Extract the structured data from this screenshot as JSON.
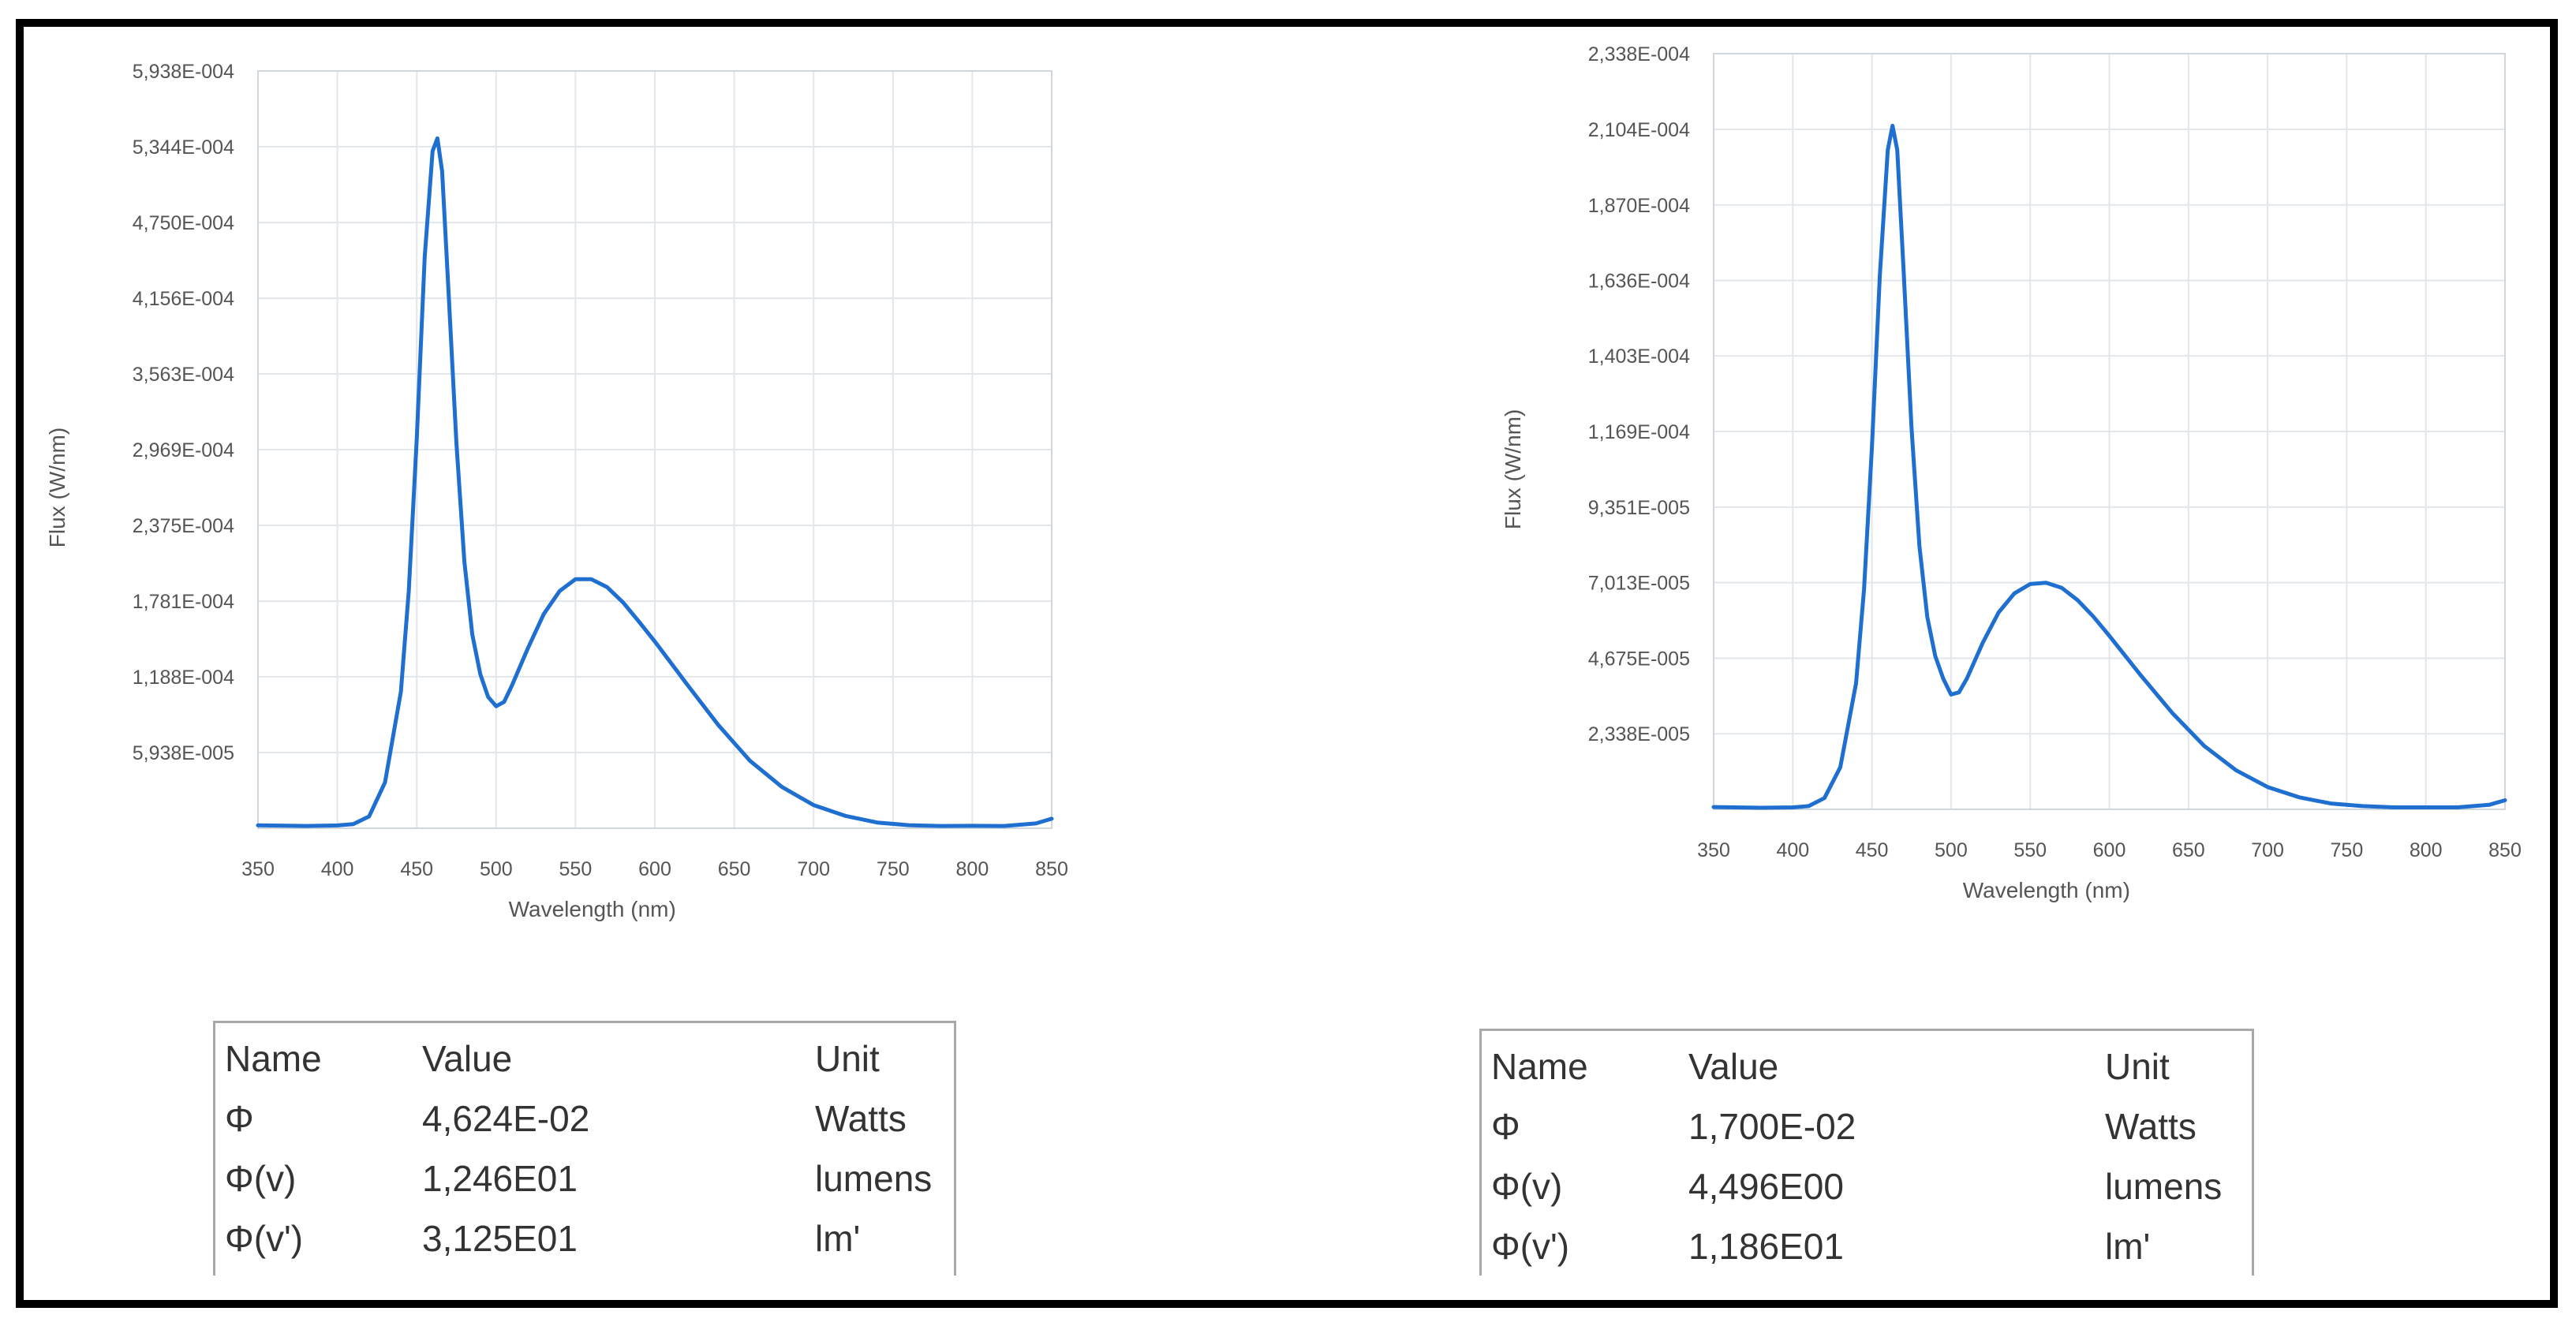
{
  "chart_data": [
    {
      "type": "line",
      "title": "",
      "xlabel": "Wavelength (nm)",
      "ylabel": "Flux (W/nm)",
      "xlim": [
        350,
        850
      ],
      "ylim": [
        0,
        0.0005938
      ],
      "x_ticks": [
        350,
        400,
        450,
        500,
        550,
        600,
        650,
        700,
        750,
        800,
        850
      ],
      "x_tick_labels": [
        "350",
        "400",
        "450",
        "500",
        "550",
        "600",
        "650",
        "700",
        "750",
        "800",
        "850"
      ],
      "y_ticks": [
        5.938e-05,
        0.0001188,
        0.0001781,
        0.0002375,
        0.0002969,
        0.0003563,
        0.0004156,
        0.000475,
        0.0005344,
        0.0005938
      ],
      "y_tick_labels": [
        "5,938E-005",
        "1,188E-004",
        "1,781E-004",
        "2,375E-004",
        "2,969E-004",
        "3,563E-004",
        "4,156E-004",
        "4,750E-004",
        "5,344E-004",
        "5,938E-004"
      ],
      "grid": true,
      "color": "#1f6fd1",
      "series": [
        {
          "x": [
            350,
            380,
            400,
            410,
            420,
            430,
            440,
            445,
            450,
            455,
            460,
            463,
            466,
            470,
            475,
            480,
            485,
            490,
            495,
            500,
            505,
            510,
            520,
            530,
            540,
            550,
            560,
            570,
            580,
            590,
            600,
            620,
            640,
            660,
            680,
            700,
            720,
            740,
            760,
            780,
            800,
            820,
            840,
            850
          ],
          "y": [
            2.3e-06,
            1.8e-06,
            2.2e-06,
            3.2e-06,
            9.3e-06,
            3.6e-05,
            0.000107,
            0.000186,
            0.000305,
            0.000448,
            0.000531,
            0.000541,
            0.000515,
            0.000422,
            0.000302,
            0.000209,
            0.000152,
            0.000121,
            0.000103,
            9.57e-05,
            9.91e-05,
            0.000112,
            0.000141,
            0.000168,
            0.000186,
            0.0001953,
            0.0001953,
            0.000189,
            0.000177,
            0.000162,
            0.0001464,
            0.0001133,
            8.09e-05,
            5.28e-05,
            3.24e-05,
            1.82e-05,
            9.7e-06,
            4.5e-06,
            2.4e-06,
            1.8e-06,
            1.9e-06,
            1.8e-06,
            3.8e-06,
            7.5e-06
          ]
        }
      ]
    },
    {
      "type": "line",
      "title": "",
      "xlabel": "Wavelength (nm)",
      "ylabel": "Flux (W/nm)",
      "xlim": [
        350,
        850
      ],
      "ylim": [
        0,
        0.0002338
      ],
      "x_ticks": [
        350,
        400,
        450,
        500,
        550,
        600,
        650,
        700,
        750,
        800,
        850
      ],
      "x_tick_labels": [
        "350",
        "400",
        "450",
        "500",
        "550",
        "600",
        "650",
        "700",
        "750",
        "800",
        "850"
      ],
      "y_ticks": [
        2.338e-05,
        4.675e-05,
        7.013e-05,
        9.351e-05,
        0.0001169,
        0.0001403,
        0.0001636,
        0.000187,
        0.0002104,
        0.0002338
      ],
      "y_tick_labels": [
        "2,338E-005",
        "4,675E-005",
        "7,013E-005",
        "9,351E-005",
        "1,169E-004",
        "1,403E-004",
        "1,636E-004",
        "1,870E-004",
        "2,104E-004",
        "2,338E-004"
      ],
      "grid": true,
      "color": "#1f6fd1",
      "series": [
        {
          "x": [
            350,
            380,
            400,
            410,
            420,
            430,
            440,
            445,
            450,
            455,
            460,
            463,
            466,
            470,
            475,
            480,
            485,
            490,
            495,
            500,
            505,
            510,
            520,
            530,
            540,
            550,
            560,
            570,
            580,
            590,
            600,
            620,
            640,
            660,
            680,
            700,
            720,
            740,
            760,
            780,
            800,
            820,
            840,
            850
          ],
          "y": [
            7e-07,
            5e-07,
            6e-07,
            1e-06,
            3.5e-06,
            1.3e-05,
            3.9e-05,
            6.8e-05,
            0.000112,
            0.000165,
            0.000204,
            0.0002115,
            0.000204,
            0.000167,
            0.000118,
            8.15e-05,
            5.95e-05,
            4.75e-05,
            4.05e-05,
            3.55e-05,
            3.62e-05,
            4.05e-05,
            5.15e-05,
            6.09e-05,
            6.68e-05,
            6.97e-05,
            7.01e-05,
            6.85e-05,
            6.47e-05,
            5.96e-05,
            5.37e-05,
            4.14e-05,
            2.97e-05,
            1.96e-05,
            1.21e-05,
            6.9e-06,
            3.7e-06,
            1.8e-06,
            1e-06,
            6e-07,
            6e-07,
            6e-07,
            1.4e-06,
            2.8e-06
          ]
        }
      ]
    }
  ],
  "results": [
    {
      "headers": {
        "name": "Name",
        "value": "Value",
        "unit": "Unit"
      },
      "rows": [
        {
          "name": "Φ",
          "value": "4,624E-02",
          "unit": "Watts"
        },
        {
          "name": "Φ(v)",
          "value": "1,246E01",
          "unit": "lumens"
        },
        {
          "name": "Φ(v')",
          "value": "3,125E01",
          "unit": "lm'"
        }
      ]
    },
    {
      "headers": {
        "name": "Name",
        "value": "Value",
        "unit": "Unit"
      },
      "rows": [
        {
          "name": "Φ",
          "value": "1,700E-02",
          "unit": "Watts"
        },
        {
          "name": "Φ(v)",
          "value": "4,496E00",
          "unit": "lumens"
        },
        {
          "name": "Φ(v')",
          "value": "1,186E01",
          "unit": "lm'"
        }
      ]
    }
  ]
}
